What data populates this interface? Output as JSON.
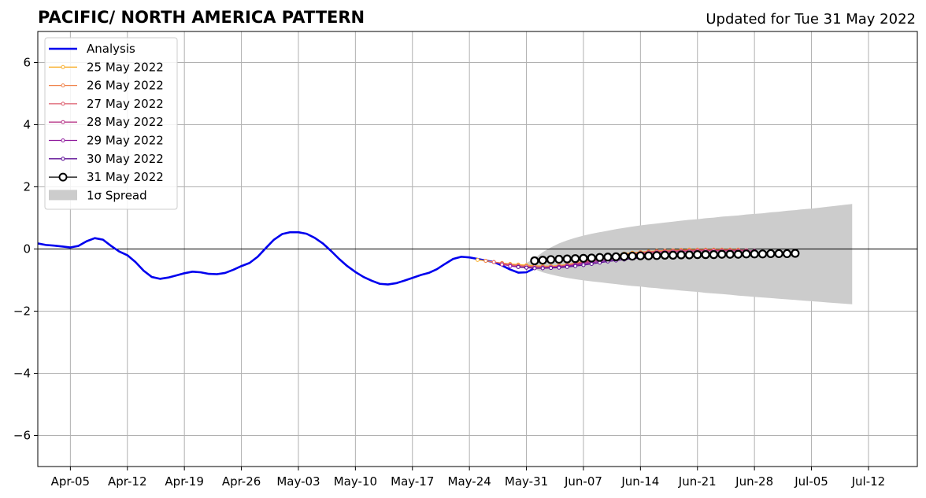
{
  "chart_data": {
    "type": "line",
    "title": "PACIFIC/ NORTH AMERICA PATTERN",
    "subtitle": "Updated for Tue 31 May 2022",
    "xlim": [
      "2022-04-01",
      "2022-07-18"
    ],
    "ylim": [
      -7,
      7
    ],
    "grid": true,
    "legend_position": "top-left",
    "x_ticks": [
      "Apr-05",
      "Apr-12",
      "Apr-19",
      "Apr-26",
      "May-03",
      "May-10",
      "May-17",
      "May-24",
      "May-31",
      "Jun-07",
      "Jun-14",
      "Jun-21",
      "Jun-28",
      "Jul-05",
      "Jul-12"
    ],
    "x_tick_dates": [
      "2022-04-05",
      "2022-04-12",
      "2022-04-19",
      "2022-04-26",
      "2022-05-03",
      "2022-05-10",
      "2022-05-17",
      "2022-05-24",
      "2022-05-31",
      "2022-06-07",
      "2022-06-14",
      "2022-06-21",
      "2022-06-28",
      "2022-07-05",
      "2022-07-12"
    ],
    "y_ticks": [
      6,
      4,
      2,
      0,
      -2,
      -4,
      -6
    ],
    "y_tick_labels": [
      "6",
      "4",
      "2",
      "0",
      "−2",
      "−4",
      "−6"
    ],
    "colors": {
      "analysis": "#0000ee",
      "spread": "#cccccc",
      "grid": "#b0b0b0",
      "zero_line": "#000000"
    },
    "legend": [
      {
        "label": "Analysis",
        "color": "#0000ee",
        "style": "thick"
      },
      {
        "label": "25 May 2022",
        "color": "#f9b030",
        "style": "small-marker"
      },
      {
        "label": "26 May 2022",
        "color": "#f0824a",
        "style": "small-marker"
      },
      {
        "label": "27 May 2022",
        "color": "#dc5a6a",
        "style": "small-marker"
      },
      {
        "label": "28 May 2022",
        "color": "#b8388a",
        "style": "small-marker"
      },
      {
        "label": "29 May 2022",
        "color": "#8f1b9c",
        "style": "small-marker"
      },
      {
        "label": "30 May 2022",
        "color": "#5d0f95",
        "style": "small-marker"
      },
      {
        "label": "31 May 2022",
        "color": "#000000",
        "style": "big-marker"
      },
      {
        "label": "1σ Spread",
        "color": "#cccccc",
        "style": "patch"
      }
    ],
    "analysis": {
      "name": "Analysis",
      "start_date": "2022-04-01",
      "values": [
        0.18,
        0.13,
        0.11,
        0.08,
        0.05,
        0.1,
        0.25,
        0.35,
        0.3,
        0.1,
        -0.08,
        -0.2,
        -0.42,
        -0.7,
        -0.9,
        -0.96,
        -0.92,
        -0.85,
        -0.78,
        -0.73,
        -0.75,
        -0.8,
        -0.81,
        -0.77,
        -0.67,
        -0.55,
        -0.45,
        -0.25,
        0.03,
        0.3,
        0.48,
        0.54,
        0.54,
        0.49,
        0.36,
        0.18,
        -0.06,
        -0.32,
        -0.55,
        -0.74,
        -0.9,
        -1.02,
        -1.12,
        -1.14,
        -1.1,
        -1.02,
        -0.93,
        -0.84,
        -0.77,
        -0.65,
        -0.48,
        -0.32,
        -0.25,
        -0.27,
        -0.32,
        -0.37,
        -0.42,
        -0.53,
        -0.66,
        -0.76,
        -0.75,
        -0.62
      ]
    },
    "forecasts": [
      {
        "name": "25 May 2022",
        "color": "#f9b030",
        "start_date": "2022-05-25",
        "values": [
          -0.35,
          -0.38,
          -0.42,
          -0.45,
          -0.48,
          -0.5,
          -0.52,
          -0.54,
          -0.55,
          -0.55,
          -0.53,
          -0.5,
          -0.45,
          -0.4,
          -0.35,
          -0.3,
          -0.25,
          -0.2,
          -0.15,
          -0.12,
          -0.1,
          -0.08,
          -0.06,
          -0.05,
          -0.04,
          -0.03,
          -0.02,
          -0.02,
          -0.02,
          -0.02,
          -0.02,
          -0.02,
          -0.02
        ]
      },
      {
        "name": "26 May 2022",
        "color": "#f0824a",
        "start_date": "2022-05-26",
        "values": [
          -0.38,
          -0.42,
          -0.46,
          -0.5,
          -0.53,
          -0.55,
          -0.56,
          -0.57,
          -0.57,
          -0.55,
          -0.52,
          -0.47,
          -0.42,
          -0.36,
          -0.31,
          -0.26,
          -0.21,
          -0.17,
          -0.14,
          -0.11,
          -0.09,
          -0.07,
          -0.06,
          -0.05,
          -0.04,
          -0.04,
          -0.03,
          -0.03,
          -0.03,
          -0.03,
          -0.03,
          -0.03
        ]
      },
      {
        "name": "27 May 2022",
        "color": "#dc5a6a",
        "start_date": "2022-05-27",
        "values": [
          -0.42,
          -0.47,
          -0.51,
          -0.54,
          -0.56,
          -0.57,
          -0.58,
          -0.57,
          -0.55,
          -0.52,
          -0.47,
          -0.42,
          -0.37,
          -0.32,
          -0.27,
          -0.22,
          -0.18,
          -0.15,
          -0.12,
          -0.1,
          -0.08,
          -0.07,
          -0.06,
          -0.05,
          -0.05,
          -0.04,
          -0.04,
          -0.04,
          -0.04,
          -0.04,
          -0.04,
          -0.04
        ]
      },
      {
        "name": "28 May 2022",
        "color": "#b8388a",
        "start_date": "2022-05-28",
        "values": [
          -0.5,
          -0.54,
          -0.57,
          -0.6,
          -0.61,
          -0.61,
          -0.6,
          -0.58,
          -0.55,
          -0.5,
          -0.45,
          -0.4,
          -0.35,
          -0.3,
          -0.26,
          -0.22,
          -0.18,
          -0.15,
          -0.13,
          -0.11,
          -0.1,
          -0.09,
          -0.08,
          -0.07,
          -0.07,
          -0.06,
          -0.06,
          -0.06,
          -0.06,
          -0.06,
          -0.06,
          -0.06
        ]
      },
      {
        "name": "29 May 2022",
        "color": "#8f1b9c",
        "start_date": "2022-05-29",
        "values": [
          -0.55,
          -0.58,
          -0.6,
          -0.61,
          -0.61,
          -0.6,
          -0.58,
          -0.55,
          -0.52,
          -0.48,
          -0.44,
          -0.4,
          -0.36,
          -0.32,
          -0.29,
          -0.26,
          -0.24,
          -0.22,
          -0.2,
          -0.19,
          -0.18,
          -0.17,
          -0.17,
          -0.16,
          -0.16,
          -0.16,
          -0.15,
          -0.15,
          -0.15,
          -0.15,
          -0.15,
          -0.15
        ]
      },
      {
        "name": "30 May 2022",
        "color": "#5d0f95",
        "start_date": "2022-05-30",
        "values": [
          -0.58,
          -0.6,
          -0.62,
          -0.62,
          -0.61,
          -0.6,
          -0.58,
          -0.55,
          -0.52,
          -0.48,
          -0.44,
          -0.4,
          -0.37,
          -0.34,
          -0.31,
          -0.29,
          -0.27,
          -0.25,
          -0.24,
          -0.22,
          -0.21,
          -0.2,
          -0.2,
          -0.19,
          -0.19,
          -0.18,
          -0.18,
          -0.18,
          -0.17,
          -0.17,
          -0.17,
          -0.17
        ]
      }
    ],
    "latest": {
      "name": "31 May 2022",
      "color": "#000000",
      "start_date": "2022-06-01",
      "values": [
        -0.38,
        -0.36,
        -0.34,
        -0.33,
        -0.32,
        -0.31,
        -0.3,
        -0.29,
        -0.27,
        -0.26,
        -0.25,
        -0.24,
        -0.23,
        -0.22,
        -0.22,
        -0.21,
        -0.2,
        -0.2,
        -0.19,
        -0.19,
        -0.18,
        -0.18,
        -0.18,
        -0.17,
        -0.17,
        -0.17,
        -0.16,
        -0.16,
        -0.16,
        -0.15,
        -0.15,
        -0.15,
        -0.14
      ]
    },
    "spread": {
      "name": "1σ Spread",
      "start_date": "2022-05-31",
      "upper": [
        -0.45,
        -0.3,
        -0.1,
        0.05,
        0.18,
        0.28,
        0.36,
        0.43,
        0.49,
        0.54,
        0.59,
        0.64,
        0.68,
        0.72,
        0.76,
        0.79,
        0.82,
        0.85,
        0.88,
        0.91,
        0.94,
        0.96,
        0.99,
        1.01,
        1.04,
        1.06,
        1.08,
        1.11,
        1.13,
        1.15,
        1.18,
        1.2,
        1.23,
        1.25,
        1.28,
        1.3,
        1.33,
        1.36,
        1.39,
        1.42,
        1.45
      ],
      "lower": [
        -0.55,
        -0.65,
        -0.75,
        -0.82,
        -0.88,
        -0.93,
        -0.97,
        -1.01,
        -1.04,
        -1.07,
        -1.1,
        -1.13,
        -1.16,
        -1.19,
        -1.21,
        -1.24,
        -1.26,
        -1.29,
        -1.31,
        -1.34,
        -1.36,
        -1.38,
        -1.41,
        -1.43,
        -1.45,
        -1.47,
        -1.5,
        -1.52,
        -1.54,
        -1.56,
        -1.58,
        -1.6,
        -1.62,
        -1.64,
        -1.66,
        -1.68,
        -1.7,
        -1.72,
        -1.74,
        -1.76,
        -1.78
      ]
    }
  }
}
